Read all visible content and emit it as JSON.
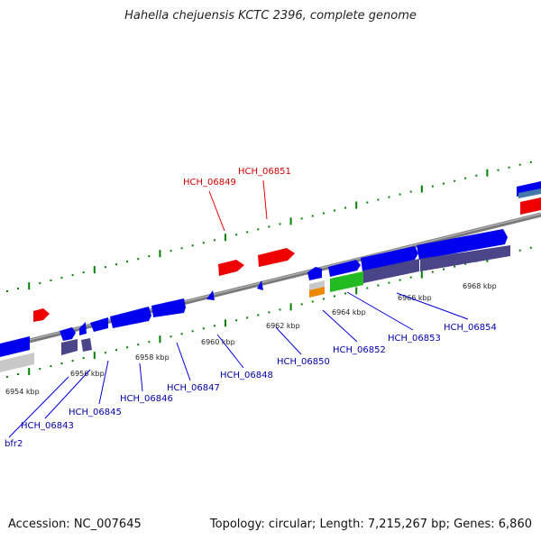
{
  "title": "Hahella chejuensis KCTC 2396, complete genome",
  "footer": {
    "accession": "Accession: NC_007645",
    "topology": "Topology: circular; Length: 7,215,267 bp; Genes: 6,860"
  },
  "colors": {
    "backbone": "#7f7f7f",
    "tick": "#008000",
    "forward_gene": "#0000ee",
    "reverse_gene": "#ee0000",
    "reverse_label": "#cc0000",
    "forward_label": "#0000aa",
    "product_bar": "#4a4488",
    "rna_gene": "#22bb22",
    "orange_gene": "#ee8800"
  },
  "scale_labels": [
    "6954 kbp",
    "6956 kbp",
    "6958 kbp",
    "6960 kbp",
    "6962 kbp",
    "6964 kbp",
    "6966 kbp",
    "6968 kbp"
  ],
  "genes_reverse": [
    "HCH_06849",
    "HCH_06851"
  ],
  "genes_forward": [
    "bfr2",
    "HCH_06843",
    "HCH_06845",
    "HCH_06846",
    "HCH_06847",
    "HCH_06848",
    "HCH_06850",
    "HCH_06852",
    "HCH_06853",
    "HCH_06854"
  ]
}
